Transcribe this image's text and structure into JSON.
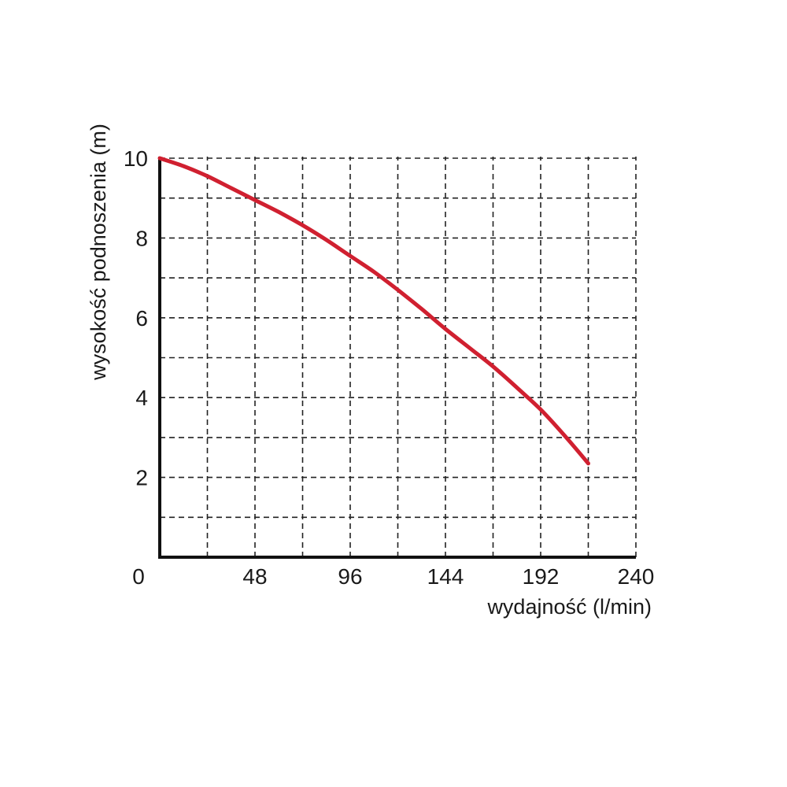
{
  "chart_data": {
    "type": "line",
    "xlabel": "wydajność (l/min)",
    "ylabel": "wysokość podnoszenia (m)",
    "xlim": [
      0,
      240
    ],
    "ylim": [
      0,
      10
    ],
    "x_ticks": [
      0,
      48,
      96,
      144,
      192,
      240
    ],
    "y_ticks": [
      2,
      4,
      6,
      8,
      10
    ],
    "grid": true,
    "grid_x_step": 24,
    "grid_y_step": 1,
    "series": [
      {
        "color": "#d02030",
        "x": [
          0,
          12,
          24,
          36,
          48,
          60,
          72,
          84,
          96,
          108,
          120,
          132,
          144,
          156,
          168,
          180,
          192,
          204,
          216
        ],
        "y": [
          10.0,
          9.8,
          9.55,
          9.25,
          8.95,
          8.65,
          8.32,
          7.95,
          7.55,
          7.15,
          6.7,
          6.22,
          5.72,
          5.25,
          4.78,
          4.25,
          3.7,
          3.05,
          2.35
        ]
      }
    ]
  }
}
